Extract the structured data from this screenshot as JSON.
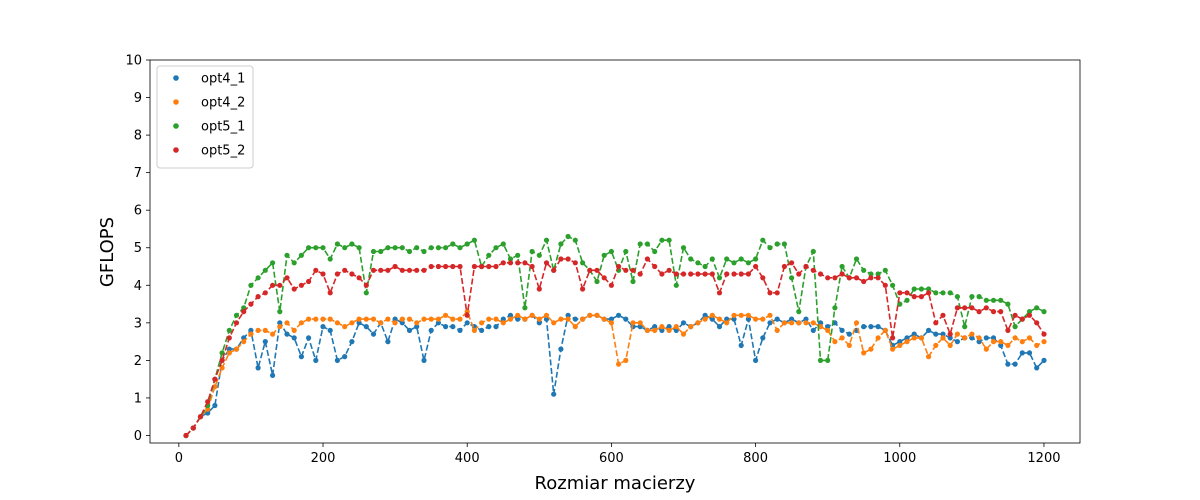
{
  "chart_data": {
    "type": "line",
    "title": "",
    "xlabel": "Rozmiar macierzy",
    "ylabel": "GFLOPS",
    "xlim": [
      -40,
      1250
    ],
    "ylim": [
      -0.2,
      10
    ],
    "xticks": [
      0,
      200,
      400,
      600,
      800,
      1000,
      1200
    ],
    "yticks": [
      0,
      1,
      2,
      3,
      4,
      5,
      6,
      7,
      8,
      9,
      10
    ],
    "grid": false,
    "legend_position": "top-left",
    "line_style": "dashed",
    "marker": "circle",
    "series_colors": [
      "#1f77b4",
      "#ff7f0e",
      "#2ca02c",
      "#d62728"
    ],
    "x": [
      10,
      20,
      30,
      40,
      50,
      60,
      70,
      80,
      90,
      100,
      110,
      120,
      130,
      140,
      150,
      160,
      170,
      180,
      190,
      200,
      210,
      220,
      230,
      240,
      250,
      260,
      270,
      280,
      290,
      300,
      310,
      320,
      330,
      340,
      350,
      360,
      370,
      380,
      390,
      400,
      410,
      420,
      430,
      440,
      450,
      460,
      470,
      480,
      490,
      500,
      510,
      520,
      530,
      540,
      550,
      560,
      570,
      580,
      590,
      600,
      610,
      620,
      630,
      640,
      650,
      660,
      670,
      680,
      690,
      700,
      710,
      720,
      730,
      740,
      750,
      760,
      770,
      780,
      790,
      800,
      810,
      820,
      830,
      840,
      850,
      860,
      870,
      880,
      890,
      900,
      910,
      920,
      930,
      940,
      950,
      960,
      970,
      980,
      990,
      1000,
      1010,
      1020,
      1030,
      1040,
      1050,
      1060,
      1070,
      1080,
      1090,
      1100,
      1110,
      1120,
      1130,
      1140,
      1150,
      1160,
      1170,
      1180,
      1190,
      1200
    ],
    "series": [
      {
        "name": "opt4_1",
        "values": [
          0.0,
          0.2,
          0.5,
          0.6,
          0.8,
          2.0,
          2.3,
          2.3,
          2.6,
          2.8,
          1.8,
          2.5,
          1.6,
          3.0,
          2.7,
          2.6,
          2.1,
          2.6,
          2.0,
          2.9,
          2.8,
          2.0,
          2.1,
          2.5,
          3.0,
          2.9,
          2.7,
          3.0,
          2.5,
          3.1,
          3.0,
          2.8,
          2.9,
          2.0,
          2.8,
          3.0,
          2.9,
          2.9,
          2.8,
          3.0,
          2.9,
          2.8,
          2.9,
          2.9,
          3.1,
          3.2,
          3.1,
          3.1,
          3.2,
          3.0,
          3.1,
          1.1,
          2.3,
          3.2,
          3.1,
          3.1,
          3.2,
          3.2,
          3.1,
          3.1,
          3.2,
          3.1,
          2.9,
          2.9,
          2.8,
          2.9,
          2.8,
          2.9,
          2.8,
          3.0,
          2.9,
          3.0,
          3.2,
          3.1,
          2.9,
          3.1,
          3.1,
          2.4,
          3.1,
          2.0,
          2.6,
          3.0,
          3.1,
          3.0,
          3.1,
          3.0,
          3.1,
          2.8,
          3.0,
          2.9,
          3.0,
          2.8,
          2.7,
          2.8,
          2.9,
          2.9,
          2.9,
          2.8,
          2.4,
          2.5,
          2.6,
          2.7,
          2.6,
          2.8,
          2.7,
          2.7,
          2.6,
          2.5,
          2.6,
          2.6,
          2.5,
          2.6,
          2.6,
          2.4,
          1.9,
          1.9,
          2.2,
          2.2,
          1.8,
          2.0
        ]
      },
      {
        "name": "opt4_2",
        "values": [
          0.0,
          0.2,
          0.5,
          0.7,
          1.3,
          1.8,
          2.2,
          2.3,
          2.5,
          2.7,
          2.8,
          2.8,
          2.7,
          2.9,
          3.0,
          2.8,
          3.0,
          3.1,
          3.1,
          3.1,
          3.1,
          3.0,
          2.9,
          3.0,
          3.1,
          3.1,
          3.1,
          3.0,
          3.1,
          3.0,
          3.1,
          3.1,
          3.0,
          3.1,
          3.1,
          3.1,
          3.2,
          3.1,
          3.1,
          3.3,
          2.8,
          3.0,
          3.1,
          3.1,
          3.0,
          3.1,
          3.2,
          3.1,
          3.2,
          3.1,
          3.2,
          3.0,
          3.1,
          3.1,
          2.9,
          3.1,
          3.2,
          3.2,
          3.1,
          3.0,
          1.9,
          2.0,
          3.0,
          3.0,
          2.8,
          2.8,
          2.9,
          2.8,
          2.9,
          2.7,
          2.9,
          3.0,
          3.1,
          3.2,
          3.1,
          3.0,
          3.2,
          3.2,
          3.2,
          3.1,
          3.1,
          3.2,
          2.8,
          3.0,
          3.0,
          3.0,
          3.0,
          3.0,
          2.9,
          2.8,
          2.5,
          2.6,
          2.4,
          3.0,
          2.2,
          2.3,
          2.6,
          2.8,
          2.3,
          2.4,
          2.5,
          2.6,
          2.6,
          2.1,
          2.4,
          2.6,
          2.4,
          2.7,
          2.6,
          2.7,
          2.6,
          2.3,
          2.5,
          2.5,
          2.4,
          2.6,
          2.5,
          2.6,
          2.4,
          2.5
        ]
      },
      {
        "name": "opt5_1",
        "values": [
          0.0,
          0.2,
          0.5,
          0.8,
          1.5,
          2.2,
          2.8,
          3.2,
          3.4,
          4.0,
          4.2,
          4.4,
          4.6,
          3.3,
          4.8,
          4.6,
          4.8,
          5.0,
          5.0,
          5.0,
          4.7,
          5.1,
          5.0,
          5.1,
          5.0,
          3.8,
          4.9,
          4.9,
          5.0,
          5.0,
          5.0,
          4.9,
          5.0,
          4.9,
          5.0,
          5.0,
          5.0,
          5.1,
          5.0,
          5.1,
          5.2,
          4.5,
          4.8,
          5.0,
          5.1,
          4.7,
          4.8,
          3.4,
          4.9,
          4.8,
          5.2,
          4.4,
          5.1,
          5.3,
          5.2,
          4.6,
          4.4,
          4.1,
          4.8,
          4.9,
          4.4,
          4.9,
          4.1,
          5.1,
          5.1,
          4.9,
          5.2,
          5.2,
          4.0,
          5.0,
          4.7,
          4.6,
          4.5,
          4.7,
          4.2,
          4.7,
          4.6,
          4.7,
          4.6,
          4.7,
          5.2,
          5.0,
          5.1,
          5.1,
          4.2,
          3.3,
          4.5,
          4.9,
          2.0,
          2.0,
          3.4,
          4.5,
          4.2,
          4.7,
          4.4,
          4.3,
          4.3,
          4.4,
          4.0,
          3.5,
          3.6,
          3.9,
          3.9,
          3.9,
          3.8,
          3.8,
          3.8,
          3.7,
          2.9,
          3.7,
          3.7,
          3.6,
          3.6,
          3.6,
          3.5,
          2.9,
          3.1,
          3.3,
          3.4,
          3.3
        ]
      },
      {
        "name": "opt5_2",
        "values": [
          0.0,
          0.2,
          0.5,
          0.9,
          1.5,
          2.0,
          2.6,
          3.0,
          3.3,
          3.5,
          3.7,
          3.8,
          4.0,
          4.0,
          4.2,
          3.9,
          4.0,
          4.1,
          4.4,
          4.3,
          3.8,
          4.3,
          4.4,
          4.3,
          4.2,
          4.0,
          4.4,
          4.4,
          4.4,
          4.5,
          4.4,
          4.4,
          4.4,
          4.4,
          4.5,
          4.5,
          4.5,
          4.5,
          4.5,
          3.2,
          4.5,
          4.5,
          4.5,
          4.5,
          4.6,
          4.6,
          4.6,
          4.6,
          4.5,
          3.9,
          4.6,
          4.4,
          4.7,
          4.7,
          4.6,
          3.9,
          4.4,
          4.4,
          4.2,
          4.0,
          4.5,
          4.4,
          4.4,
          4.3,
          4.7,
          4.5,
          4.3,
          4.4,
          4.3,
          4.3,
          4.3,
          4.3,
          4.3,
          4.3,
          3.8,
          4.3,
          4.3,
          4.3,
          4.3,
          4.5,
          4.2,
          3.8,
          3.8,
          4.5,
          4.6,
          4.3,
          4.5,
          4.4,
          4.3,
          4.2,
          4.2,
          4.3,
          4.2,
          4.2,
          4.1,
          4.2,
          4.2,
          4.0,
          2.6,
          3.8,
          3.8,
          3.7,
          3.7,
          3.8,
          3.0,
          3.2,
          2.7,
          3.4,
          3.4,
          3.4,
          3.3,
          3.4,
          3.3,
          3.3,
          2.8,
          3.2,
          3.1,
          3.2,
          3.0,
          2.7
        ]
      }
    ]
  }
}
